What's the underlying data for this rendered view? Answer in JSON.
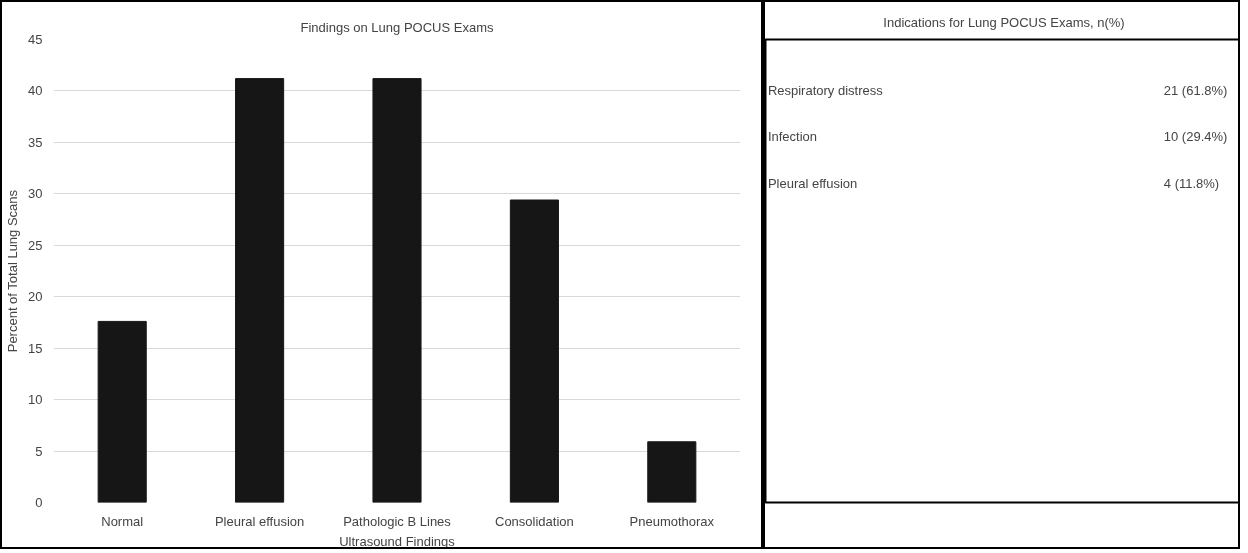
{
  "chart_data": [
    {
      "type": "bar",
      "title": "Findings on Lung POCUS Exams",
      "xlabel": "Ultrasound Findings",
      "ylabel": "Percent of Total Lung Scans",
      "categories": [
        "Normal",
        "Pleural effusion",
        "Pathologic B Lines",
        "Consolidation",
        "Pneumothorax"
      ],
      "values": [
        17.6,
        41.2,
        41.2,
        29.4,
        5.9
      ],
      "color": "#161616",
      "ylim": [
        0,
        45
      ],
      "yticks": [
        0,
        5,
        10,
        15,
        20,
        25,
        30,
        35,
        40,
        45
      ],
      "grid": "y"
    },
    {
      "type": "other",
      "title": "Indications for Lung POCUS Exams, n(%)",
      "annotations": [
        "Respiratory distress",
        "21 (61.8%)",
        "Infection",
        "10 (29.4%)",
        "Pleural effusion",
        "4 (11.8%)"
      ]
    }
  ]
}
